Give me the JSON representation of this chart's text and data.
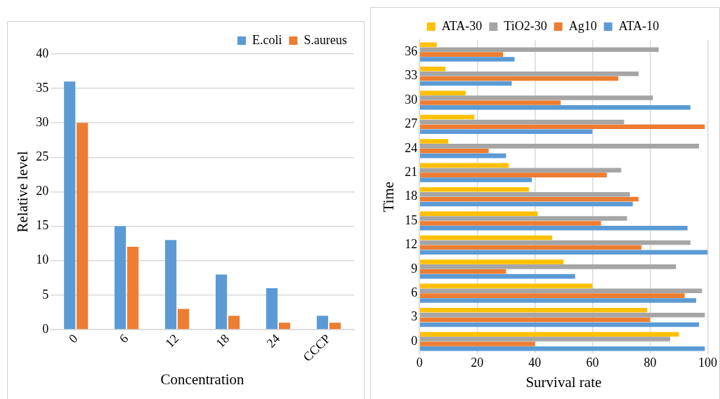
{
  "chart_data": [
    {
      "type": "bar",
      "xlabel": "Concentration",
      "ylabel": "Relative level",
      "categories": [
        "0",
        "6",
        "12",
        "18",
        "24",
        "CCCP"
      ],
      "series": [
        {
          "name": "E.coli",
          "color": "#5b9bd5",
          "values": [
            36,
            15,
            13,
            8,
            6,
            2
          ]
        },
        {
          "name": "S.aureus",
          "color": "#ed7d31",
          "values": [
            30,
            12,
            3,
            2,
            1,
            1
          ]
        }
      ],
      "ylim": [
        0,
        40
      ],
      "yticks": [
        0,
        5,
        10,
        15,
        20,
        25,
        30,
        35,
        40
      ],
      "grid": "y",
      "legend": "top right"
    },
    {
      "type": "bar",
      "orientation": "horizontal",
      "xlabel": "Survival rate",
      "ylabel": "Time",
      "categories": [
        "36",
        "33",
        "30",
        "27",
        "24",
        "21",
        "18",
        "15",
        "12",
        "9",
        "6",
        "3",
        "0"
      ],
      "series": [
        {
          "name": "ATA-30",
          "color": "#ffc000",
          "values": [
            6,
            9,
            16,
            19,
            10,
            31,
            38,
            41,
            46,
            50,
            60,
            79,
            90
          ]
        },
        {
          "name": "TiO2-30",
          "color": "#a5a5a5",
          "values": [
            83,
            76,
            81,
            71,
            97,
            70,
            73,
            72,
            94,
            89,
            98,
            99,
            87
          ]
        },
        {
          "name": "Ag10",
          "color": "#ed7d31",
          "values": [
            29,
            69,
            49,
            99,
            24,
            65,
            76,
            63,
            77,
            30,
            92,
            80,
            40
          ]
        },
        {
          "name": "ATA-10",
          "color": "#5b9bd5",
          "values": [
            33,
            32,
            94,
            60,
            30,
            39,
            74,
            93,
            100,
            54,
            96,
            97,
            99
          ]
        }
      ],
      "xlim": [
        0,
        100
      ],
      "xticks": [
        0,
        20,
        40,
        60,
        80,
        100
      ],
      "grid": "x",
      "legend": "top"
    }
  ]
}
